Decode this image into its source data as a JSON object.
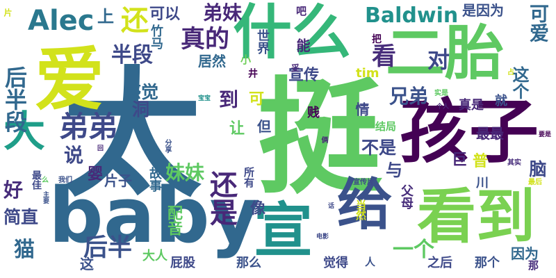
{
  "palette": {
    "dark_purple": "#440154",
    "indigo": "#3b528b",
    "blue": "#31688e",
    "teal": "#21918c",
    "green": "#5ec962",
    "lime": "#b5de2b",
    "yellow": "#fde725"
  },
  "words": [
    {
      "text": "太",
      "color": "#31688e"
    },
    {
      "text": "挺",
      "color": "#5ec962"
    },
    {
      "text": "baby",
      "color": "#31688e"
    },
    {
      "text": "孩子",
      "color": "#440154"
    },
    {
      "text": "爱",
      "color": "#d2e21b"
    },
    {
      "text": "什么",
      "color": "#35b779"
    },
    {
      "text": "二胎",
      "color": "#5ec962"
    },
    {
      "text": "看到",
      "color": "#7ad151"
    },
    {
      "text": "宣",
      "color": "#21918c"
    },
    {
      "text": "给",
      "color": "#3b528b"
    },
    {
      "text": "大",
      "color": "#1f9e89"
    },
    {
      "text": "弟弟",
      "color": "#3e4989"
    },
    {
      "text": "Alec",
      "color": "#2a788e"
    },
    {
      "text": "Baldwin",
      "color": "#21918c"
    },
    {
      "text": "还",
      "color": "#d2e21b"
    },
    {
      "text": "后半段",
      "color": "#31688e"
    },
    {
      "text": "真的",
      "color": "#482878"
    },
    {
      "text": "看",
      "color": "#472d7b"
    },
    {
      "text": "对",
      "color": "#3e4989"
    },
    {
      "text": "半段",
      "color": "#3e4989"
    },
    {
      "text": "弟妹",
      "color": "#482878"
    },
    {
      "text": "上",
      "color": "#31688e"
    },
    {
      "text": "可以",
      "color": "#3e4989"
    },
    {
      "text": "是因为",
      "color": "#3b528b"
    },
    {
      "text": "可爱",
      "color": "#31688e"
    },
    {
      "text": "吧",
      "color": "#482878"
    },
    {
      "text": "竹马",
      "color": "#31688e"
    },
    {
      "text": "世界",
      "color": "#3b528b"
    },
    {
      "text": "能",
      "color": "#482878"
    },
    {
      "text": "把",
      "color": "#440154"
    },
    {
      "text": "居然",
      "color": "#31688e"
    },
    {
      "text": "小",
      "color": "#6ece58"
    },
    {
      "text": "宣传",
      "color": "#3e4989"
    },
    {
      "text": "tim",
      "color": "#d2e21b"
    },
    {
      "text": "这个",
      "color": "#31688e"
    },
    {
      "text": "兄弟",
      "color": "#3b528b"
    },
    {
      "text": "感觉",
      "color": "#31688e"
    },
    {
      "text": "到",
      "color": "#482878"
    },
    {
      "text": "洞",
      "color": "#3e4989"
    },
    {
      "text": "可",
      "color": "#d2e21b"
    },
    {
      "text": "真是",
      "color": "#482878"
    },
    {
      "text": "就",
      "color": "#3b528b"
    },
    {
      "text": "说",
      "color": "#3e4989"
    },
    {
      "text": "让",
      "color": "#5ec962"
    },
    {
      "text": "但",
      "color": "#3b528b"
    },
    {
      "text": "情",
      "color": "#3e4989"
    },
    {
      "text": "贱",
      "color": "#440154"
    },
    {
      "text": "结局",
      "color": "#5ec962"
    },
    {
      "text": "最最",
      "color": "#482878"
    },
    {
      "text": "不是",
      "color": "#3e4989"
    },
    {
      "text": "好",
      "color": "#472d7b"
    },
    {
      "text": "妹妹",
      "color": "#5ec962"
    },
    {
      "text": "与",
      "color": "#3e4989"
    },
    {
      "text": "巨",
      "color": "#482878"
    },
    {
      "text": "普",
      "color": "#d2e21b"
    },
    {
      "text": "脑",
      "color": "#3e4989"
    },
    {
      "text": "婴",
      "color": "#482878"
    },
    {
      "text": "片子",
      "color": "#3b528b"
    },
    {
      "text": "故事",
      "color": "#31688e"
    },
    {
      "text": "所有",
      "color": "#3e4989"
    },
    {
      "text": "川",
      "color": "#3b528b"
    },
    {
      "text": "父母",
      "color": "#472d7b"
    },
    {
      "text": "简直",
      "color": "#3e4989"
    },
    {
      "text": "还是",
      "color": "#482878"
    },
    {
      "text": "像",
      "color": "#3e4989"
    },
    {
      "text": "配音",
      "color": "#5ec962"
    },
    {
      "text": "猫",
      "color": "#31688e"
    },
    {
      "text": "后半",
      "color": "#3b528b"
    },
    {
      "text": "一个",
      "color": "#5ec962"
    },
    {
      "text": "这",
      "color": "#3b528b"
    },
    {
      "text": "大人",
      "color": "#5ec962"
    },
    {
      "text": "屁股",
      "color": "#3e4989"
    },
    {
      "text": "那么",
      "color": "#3b528b"
    },
    {
      "text": "觉得",
      "color": "#3e4989"
    },
    {
      "text": "之后",
      "color": "#3e4989"
    },
    {
      "text": "那个",
      "color": "#3b528b"
    },
    {
      "text": "因为",
      "color": "#31688e"
    },
    {
      "text": "那",
      "color": "#472d7b"
    },
    {
      "text": "最佳",
      "color": "#3e4989"
    },
    {
      "text": "人",
      "color": "#3b528b"
    },
    {
      "text": "片",
      "color": "#d2e21b"
    },
    {
      "text": "妥",
      "color": "#482878"
    },
    {
      "text": "井",
      "color": "#440154"
    },
    {
      "text": "占",
      "color": "#d2e21b"
    },
    {
      "text": "实是",
      "color": "#5ec962"
    },
    {
      "text": "宝宝",
      "color": "#21918c"
    },
    {
      "text": "个人",
      "color": "#482878"
    },
    {
      "text": "要是",
      "color": "#440154"
    },
    {
      "text": "回",
      "color": "#482878"
    },
    {
      "text": "分享",
      "color": "#3b528b"
    },
    {
      "text": "俩",
      "color": "#482878"
    },
    {
      "text": "其实",
      "color": "#472d7b"
    },
    {
      "text": "么",
      "color": "#5ec962"
    },
    {
      "text": "最后",
      "color": "#d2e21b"
    },
    {
      "text": "我们",
      "color": "#3b528b"
    },
    {
      "text": "宣传片",
      "color": "#3e4989"
    },
    {
      "text": "话",
      "color": "#3e4989"
    },
    {
      "text": "当然",
      "color": "#d2e21b"
    },
    {
      "text": "电影",
      "color": "#3e4989"
    },
    {
      "text": "主要",
      "color": "#3b528b"
    }
  ]
}
